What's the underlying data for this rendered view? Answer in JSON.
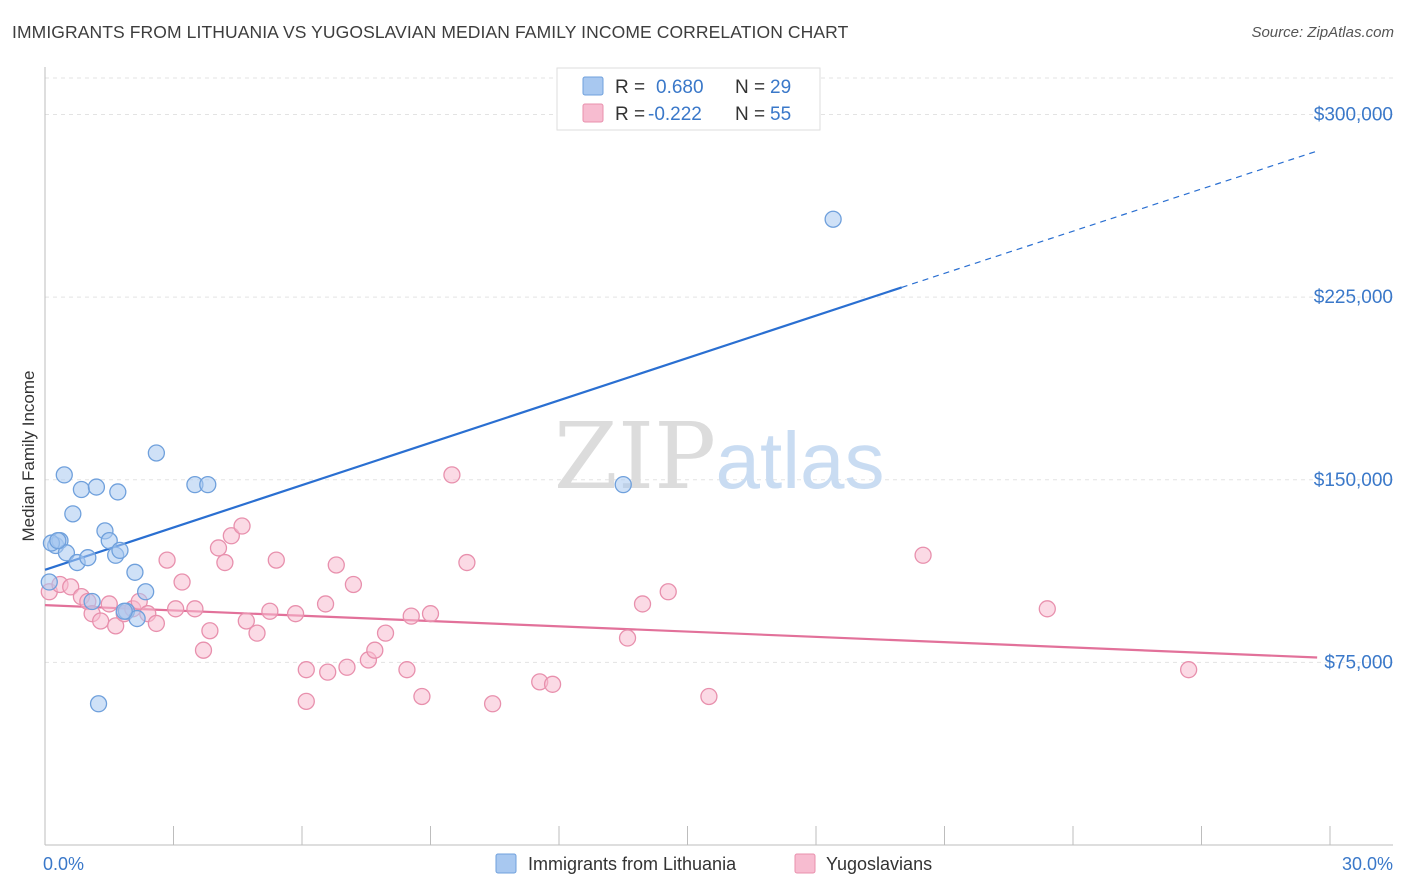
{
  "header": {
    "title": "IMMIGRANTS FROM LITHUANIA VS YUGOSLAVIAN MEDIAN FAMILY INCOME CORRELATION CHART",
    "source": "Source: ZipAtlas.com"
  },
  "watermark": {
    "part1": "ZIP",
    "part2": "atlas"
  },
  "legend_box": {
    "rows": [
      {
        "r_label": "R = ",
        "r_value": "0.680",
        "n_label": "N = ",
        "n_value": "29"
      },
      {
        "r_label": "R = ",
        "r_value": "-0.222",
        "n_label": "N = ",
        "n_value": "55"
      }
    ]
  },
  "colors": {
    "blue_fill": "#a8c8f0",
    "blue_stroke": "#6fa0dc",
    "blue_line": "#2a6fd1",
    "pink_fill": "#f7bcd0",
    "pink_stroke": "#e890ad",
    "pink_line": "#e2719a",
    "axis_text": "#3a78c9",
    "grid": "#e3e3e3"
  },
  "chart_data": {
    "type": "scatter",
    "title": "IMMIGRANTS FROM LITHUANIA VS YUGOSLAVIAN MEDIAN FAMILY INCOME CORRELATION CHART",
    "xlabel": "",
    "ylabel": "Median Family Income",
    "xlim": [
      0,
      30
    ],
    "ylim": [
      0,
      315000
    ],
    "x_tick_labels": [
      {
        "value": 0,
        "label": "0.0%"
      },
      {
        "value": 30,
        "label": "30.0%"
      }
    ],
    "y_ticks": [
      {
        "value": 75000,
        "label": "$75,000"
      },
      {
        "value": 150000,
        "label": "$150,000"
      },
      {
        "value": 225000,
        "label": "$225,000"
      },
      {
        "value": 300000,
        "label": "$300,000"
      }
    ],
    "grid": true,
    "legend_position": "bottom-center",
    "series": [
      {
        "name": "Immigrants from Lithuania",
        "color": "#a8c8f0",
        "R": 0.68,
        "N": 29,
        "trend": {
          "x0": 0,
          "y0": 113000,
          "x1": 20,
          "y1": 229000,
          "dash_to_x": 29.7,
          "dash_to_y": 285000
        },
        "points": [
          [
            0.1,
            108000
          ],
          [
            0.25,
            123000
          ],
          [
            0.35,
            125000
          ],
          [
            0.45,
            152000
          ],
          [
            0.5,
            120000
          ],
          [
            0.65,
            136000
          ],
          [
            0.75,
            116000
          ],
          [
            0.85,
            146000
          ],
          [
            1.0,
            118000
          ],
          [
            1.1,
            100000
          ],
          [
            1.2,
            147000
          ],
          [
            1.4,
            129000
          ],
          [
            1.5,
            125000
          ],
          [
            1.65,
            119000
          ],
          [
            1.75,
            121000
          ],
          [
            1.7,
            145000
          ],
          [
            1.9,
            96000
          ],
          [
            2.1,
            112000
          ],
          [
            2.15,
            93000
          ],
          [
            2.35,
            104000
          ],
          [
            2.6,
            161000
          ],
          [
            3.5,
            148000
          ],
          [
            3.8,
            148000
          ],
          [
            1.25,
            58000
          ],
          [
            13.5,
            148000
          ],
          [
            18.4,
            257000
          ],
          [
            1.85,
            96000
          ],
          [
            0.15,
            124000
          ],
          [
            0.3,
            125000
          ]
        ]
      },
      {
        "name": "Yugoslavians",
        "color": "#f7bcd0",
        "R": -0.222,
        "N": 55,
        "trend": {
          "x0": 0,
          "y0": 98500,
          "x1": 29.7,
          "y1": 77000
        },
        "points": [
          [
            0.1,
            104000
          ],
          [
            0.35,
            107000
          ],
          [
            0.6,
            106000
          ],
          [
            0.85,
            102000
          ],
          [
            1.0,
            100000
          ],
          [
            1.1,
            95000
          ],
          [
            1.3,
            92000
          ],
          [
            1.5,
            99000
          ],
          [
            1.65,
            90000
          ],
          [
            1.85,
            95000
          ],
          [
            2.05,
            97000
          ],
          [
            2.2,
            100000
          ],
          [
            2.4,
            95000
          ],
          [
            2.6,
            91000
          ],
          [
            2.85,
            117000
          ],
          [
            3.05,
            97000
          ],
          [
            3.2,
            108000
          ],
          [
            3.5,
            97000
          ],
          [
            3.7,
            80000
          ],
          [
            3.85,
            88000
          ],
          [
            4.05,
            122000
          ],
          [
            4.2,
            116000
          ],
          [
            4.35,
            127000
          ],
          [
            4.6,
            131000
          ],
          [
            4.7,
            92000
          ],
          [
            4.95,
            87000
          ],
          [
            5.25,
            96000
          ],
          [
            5.4,
            117000
          ],
          [
            5.85,
            95000
          ],
          [
            6.1,
            72000
          ],
          [
            6.1,
            59000
          ],
          [
            6.55,
            99000
          ],
          [
            6.6,
            71000
          ],
          [
            6.8,
            115000
          ],
          [
            7.05,
            73000
          ],
          [
            7.2,
            107000
          ],
          [
            7.55,
            76000
          ],
          [
            7.7,
            80000
          ],
          [
            7.95,
            87000
          ],
          [
            8.45,
            72000
          ],
          [
            8.55,
            94000
          ],
          [
            8.8,
            61000
          ],
          [
            9.0,
            95000
          ],
          [
            9.5,
            152000
          ],
          [
            9.85,
            116000
          ],
          [
            10.45,
            58000
          ],
          [
            11.55,
            67000
          ],
          [
            11.85,
            66000
          ],
          [
            13.6,
            85000
          ],
          [
            13.95,
            99000
          ],
          [
            14.55,
            104000
          ],
          [
            15.5,
            61000
          ],
          [
            20.5,
            119000
          ],
          [
            23.4,
            97000
          ],
          [
            26.7,
            72000
          ]
        ]
      }
    ]
  }
}
